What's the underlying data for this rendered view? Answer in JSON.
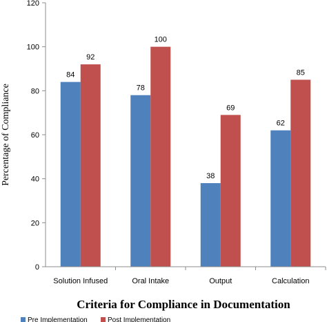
{
  "chart_data": {
    "type": "bar",
    "categories": [
      "Solution Infused",
      "Oral Intake",
      "Output",
      "Calculation"
    ],
    "series": [
      {
        "name": "Pre Implementation",
        "values": [
          84,
          78,
          38,
          62
        ],
        "color": "#4F81BD"
      },
      {
        "name": "Post Implementation",
        "values": [
          92,
          100,
          69,
          85
        ],
        "color": "#C0504D"
      }
    ],
    "xlabel": "Criteria for Compliance in Documentation",
    "ylabel": "Percentage of Compliance",
    "ylim": [
      0,
      120
    ],
    "yticks": [
      0,
      20,
      40,
      60,
      80,
      100,
      120
    ],
    "grid": false,
    "legend_position": "bottom",
    "data_labels": true
  }
}
